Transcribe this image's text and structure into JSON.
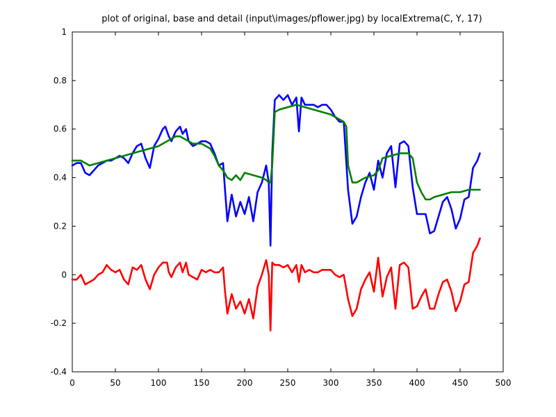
{
  "chart_data": {
    "type": "line",
    "title": "plot of original, base and detail (input\\images/pflower.jpg) by localExtrema(C, Y, 17)",
    "xlabel": "",
    "ylabel": "",
    "xlim": [
      0,
      500
    ],
    "ylim": [
      -0.4,
      1
    ],
    "xticks": [
      "0",
      "50",
      "100",
      "150",
      "200",
      "250",
      "300",
      "350",
      "400",
      "450",
      "500"
    ],
    "yticks": [
      "-0.4",
      "-0.2",
      "0",
      "0.2",
      "0.4",
      "0.6",
      "0.8",
      "1"
    ],
    "grid": false,
    "series": [
      {
        "color": "#0000ff",
        "x": [
          0,
          5,
          10,
          15,
          20,
          25,
          30,
          35,
          40,
          45,
          50,
          55,
          60,
          65,
          70,
          75,
          80,
          85,
          90,
          95,
          100,
          105,
          108,
          112,
          115,
          120,
          125,
          128,
          132,
          135,
          140,
          145,
          150,
          155,
          160,
          165,
          170,
          175,
          177,
          180,
          185,
          190,
          195,
          200,
          205,
          210,
          215,
          220,
          225,
          228,
          230,
          232,
          235,
          240,
          245,
          250,
          255,
          260,
          263,
          266,
          270,
          275,
          280,
          285,
          290,
          295,
          300,
          305,
          310,
          315,
          320,
          325,
          330,
          335,
          340,
          345,
          350,
          355,
          360,
          365,
          370,
          375,
          380,
          385,
          390,
          395,
          400,
          405,
          410,
          415,
          420,
          425,
          430,
          435,
          440,
          445,
          450,
          455,
          460,
          465,
          470,
          473
        ],
        "y": [
          0.45,
          0.46,
          0.46,
          0.42,
          0.41,
          0.43,
          0.45,
          0.46,
          0.47,
          0.47,
          0.48,
          0.49,
          0.48,
          0.46,
          0.5,
          0.53,
          0.54,
          0.48,
          0.44,
          0.53,
          0.56,
          0.6,
          0.61,
          0.57,
          0.55,
          0.59,
          0.61,
          0.58,
          0.6,
          0.55,
          0.53,
          0.54,
          0.55,
          0.55,
          0.54,
          0.5,
          0.45,
          0.46,
          0.36,
          0.22,
          0.33,
          0.24,
          0.3,
          0.25,
          0.32,
          0.22,
          0.34,
          0.38,
          0.45,
          0.38,
          0.12,
          0.5,
          0.72,
          0.74,
          0.72,
          0.74,
          0.7,
          0.73,
          0.59,
          0.73,
          0.7,
          0.7,
          0.7,
          0.69,
          0.7,
          0.7,
          0.68,
          0.65,
          0.63,
          0.63,
          0.35,
          0.21,
          0.24,
          0.32,
          0.38,
          0.42,
          0.35,
          0.47,
          0.4,
          0.5,
          0.53,
          0.36,
          0.54,
          0.55,
          0.53,
          0.36,
          0.25,
          0.25,
          0.25,
          0.17,
          0.18,
          0.24,
          0.3,
          0.32,
          0.27,
          0.19,
          0.23,
          0.31,
          0.32,
          0.44,
          0.47,
          0.5
        ]
      },
      {
        "color": "#007f00",
        "x": [
          0,
          10,
          20,
          30,
          40,
          50,
          60,
          70,
          80,
          90,
          100,
          110,
          115,
          120,
          125,
          130,
          140,
          150,
          160,
          165,
          170,
          175,
          180,
          185,
          190,
          195,
          200,
          210,
          220,
          225,
          228,
          230,
          232,
          235,
          240,
          250,
          260,
          270,
          280,
          290,
          300,
          305,
          310,
          315,
          318,
          320,
          325,
          330,
          340,
          350,
          355,
          360,
          370,
          380,
          385,
          390,
          395,
          400,
          405,
          410,
          415,
          420,
          430,
          440,
          450,
          460,
          470,
          473
        ],
        "y": [
          0.47,
          0.47,
          0.45,
          0.46,
          0.47,
          0.48,
          0.49,
          0.5,
          0.51,
          0.52,
          0.53,
          0.55,
          0.56,
          0.57,
          0.57,
          0.56,
          0.54,
          0.54,
          0.52,
          0.49,
          0.45,
          0.43,
          0.4,
          0.39,
          0.41,
          0.39,
          0.42,
          0.41,
          0.4,
          0.39,
          0.38,
          0.38,
          0.45,
          0.67,
          0.68,
          0.69,
          0.7,
          0.69,
          0.68,
          0.67,
          0.66,
          0.65,
          0.64,
          0.63,
          0.61,
          0.45,
          0.38,
          0.38,
          0.4,
          0.41,
          0.43,
          0.48,
          0.49,
          0.5,
          0.5,
          0.5,
          0.48,
          0.38,
          0.34,
          0.31,
          0.31,
          0.32,
          0.33,
          0.34,
          0.34,
          0.35,
          0.35,
          0.35
        ]
      },
      {
        "color": "#ff0000",
        "x": [
          0,
          5,
          10,
          15,
          20,
          25,
          30,
          35,
          40,
          45,
          50,
          55,
          60,
          65,
          70,
          75,
          80,
          85,
          90,
          95,
          100,
          105,
          110,
          112,
          115,
          120,
          125,
          128,
          132,
          135,
          140,
          145,
          150,
          155,
          160,
          165,
          170,
          175,
          177,
          180,
          185,
          190,
          195,
          200,
          205,
          210,
          215,
          220,
          225,
          228,
          230,
          232,
          235,
          240,
          245,
          250,
          255,
          260,
          263,
          266,
          270,
          275,
          280,
          285,
          290,
          295,
          300,
          305,
          310,
          315,
          320,
          325,
          330,
          335,
          340,
          345,
          350,
          355,
          360,
          365,
          370,
          375,
          380,
          385,
          390,
          395,
          400,
          405,
          410,
          415,
          420,
          425,
          430,
          435,
          440,
          445,
          450,
          455,
          460,
          465,
          470,
          473
        ],
        "y": [
          -0.02,
          -0.02,
          0.0,
          -0.04,
          -0.03,
          -0.02,
          0.0,
          0.01,
          0.04,
          0.02,
          0.01,
          0.02,
          -0.02,
          -0.04,
          0.03,
          0.02,
          0.04,
          -0.02,
          -0.06,
          0.0,
          0.03,
          0.05,
          0.05,
          0.01,
          -0.01,
          0.03,
          0.05,
          0.01,
          0.05,
          0.0,
          -0.01,
          -0.02,
          0.02,
          0.01,
          0.02,
          0.01,
          0.01,
          0.03,
          -0.06,
          -0.16,
          -0.08,
          -0.14,
          -0.11,
          -0.16,
          -0.1,
          -0.18,
          -0.05,
          0.0,
          0.06,
          0.0,
          -0.23,
          0.05,
          0.04,
          0.04,
          0.03,
          0.04,
          0.01,
          0.04,
          -0.03,
          0.04,
          0.01,
          0.02,
          0.01,
          0.01,
          0.02,
          0.02,
          0.02,
          0.0,
          -0.01,
          0.0,
          -0.1,
          -0.17,
          -0.14,
          -0.06,
          -0.02,
          0.01,
          -0.07,
          0.07,
          -0.09,
          -0.01,
          0.03,
          -0.14,
          0.04,
          0.05,
          0.03,
          -0.14,
          -0.13,
          -0.09,
          -0.06,
          -0.14,
          -0.14,
          -0.08,
          -0.03,
          -0.02,
          -0.07,
          -0.15,
          -0.11,
          -0.04,
          -0.03,
          0.09,
          0.12,
          0.15
        ]
      }
    ]
  }
}
